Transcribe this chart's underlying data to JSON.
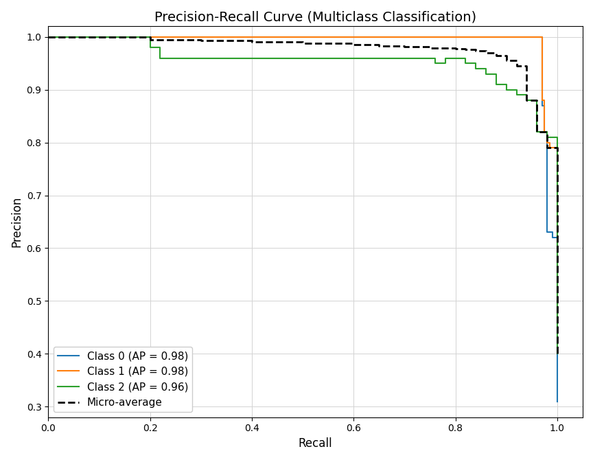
{
  "title": "Precision-Recall Curve (Multiclass Classification)",
  "xlabel": "Recall",
  "ylabel": "Precision",
  "figsize": [
    8.64,
    6.7
  ],
  "dpi": 100,
  "class0": {
    "label": "Class 0 (AP = 0.98)",
    "color": "#1f77b4",
    "recall": [
      0.0,
      0.97,
      0.97,
      0.975,
      0.975,
      0.98,
      0.98,
      0.99,
      0.99,
      1.0,
      1.0
    ],
    "precision": [
      1.0,
      1.0,
      0.87,
      0.87,
      0.82,
      0.82,
      0.63,
      0.63,
      0.62,
      0.62,
      0.31
    ]
  },
  "class1": {
    "label": "Class 1 (AP = 0.98)",
    "color": "#ff7f0e",
    "recall": [
      0.0,
      0.97,
      0.97,
      0.975,
      0.975,
      0.98,
      0.98,
      0.985,
      0.985,
      1.0,
      1.0
    ],
    "precision": [
      1.0,
      1.0,
      0.88,
      0.88,
      0.82,
      0.82,
      0.8,
      0.8,
      0.79,
      0.79,
      0.46
    ]
  },
  "class2": {
    "label": "Class 2 (AP = 0.96)",
    "color": "#2ca02c",
    "recall": [
      0.0,
      0.2,
      0.2,
      0.22,
      0.22,
      0.28,
      0.28,
      0.32,
      0.32,
      0.56,
      0.56,
      0.64,
      0.64,
      0.76,
      0.76,
      0.78,
      0.78,
      0.8,
      0.8,
      0.82,
      0.82,
      0.84,
      0.84,
      0.86,
      0.86,
      0.88,
      0.88,
      0.9,
      0.9,
      0.92,
      0.92,
      0.94,
      0.94,
      0.96,
      0.96,
      0.98,
      0.98,
      1.0,
      1.0
    ],
    "precision": [
      1.0,
      1.0,
      0.98,
      0.98,
      0.96,
      0.96,
      0.96,
      0.96,
      0.96,
      0.96,
      0.96,
      0.96,
      0.96,
      0.96,
      0.95,
      0.95,
      0.96,
      0.96,
      0.96,
      0.96,
      0.95,
      0.95,
      0.94,
      0.94,
      0.93,
      0.93,
      0.91,
      0.91,
      0.9,
      0.9,
      0.89,
      0.89,
      0.88,
      0.82,
      0.82,
      0.82,
      0.81,
      0.81,
      0.4
    ]
  },
  "micro": {
    "label": "Micro-average",
    "color": "#000000",
    "recall": [
      0.0,
      0.2,
      0.2,
      0.3,
      0.3,
      0.4,
      0.4,
      0.5,
      0.5,
      0.6,
      0.6,
      0.65,
      0.65,
      0.7,
      0.7,
      0.75,
      0.75,
      0.8,
      0.8,
      0.82,
      0.82,
      0.84,
      0.84,
      0.86,
      0.86,
      0.88,
      0.88,
      0.9,
      0.9,
      0.92,
      0.92,
      0.94,
      0.94,
      0.96,
      0.96,
      0.98,
      0.98,
      1.0,
      1.0
    ],
    "precision": [
      1.0,
      1.0,
      0.995,
      0.995,
      0.993,
      0.993,
      0.99,
      0.99,
      0.988,
      0.988,
      0.985,
      0.985,
      0.983,
      0.983,
      0.981,
      0.981,
      0.979,
      0.979,
      0.978,
      0.978,
      0.976,
      0.976,
      0.974,
      0.974,
      0.97,
      0.97,
      0.965,
      0.965,
      0.955,
      0.955,
      0.945,
      0.945,
      0.88,
      0.88,
      0.82,
      0.82,
      0.79,
      0.79,
      0.4
    ]
  },
  "xlim": [
    0.0,
    1.05
  ],
  "ylim": [
    0.28,
    1.02
  ],
  "legend_loc": "lower left",
  "grid": true,
  "linewidth": 1.5,
  "micro_linewidth": 2.0
}
